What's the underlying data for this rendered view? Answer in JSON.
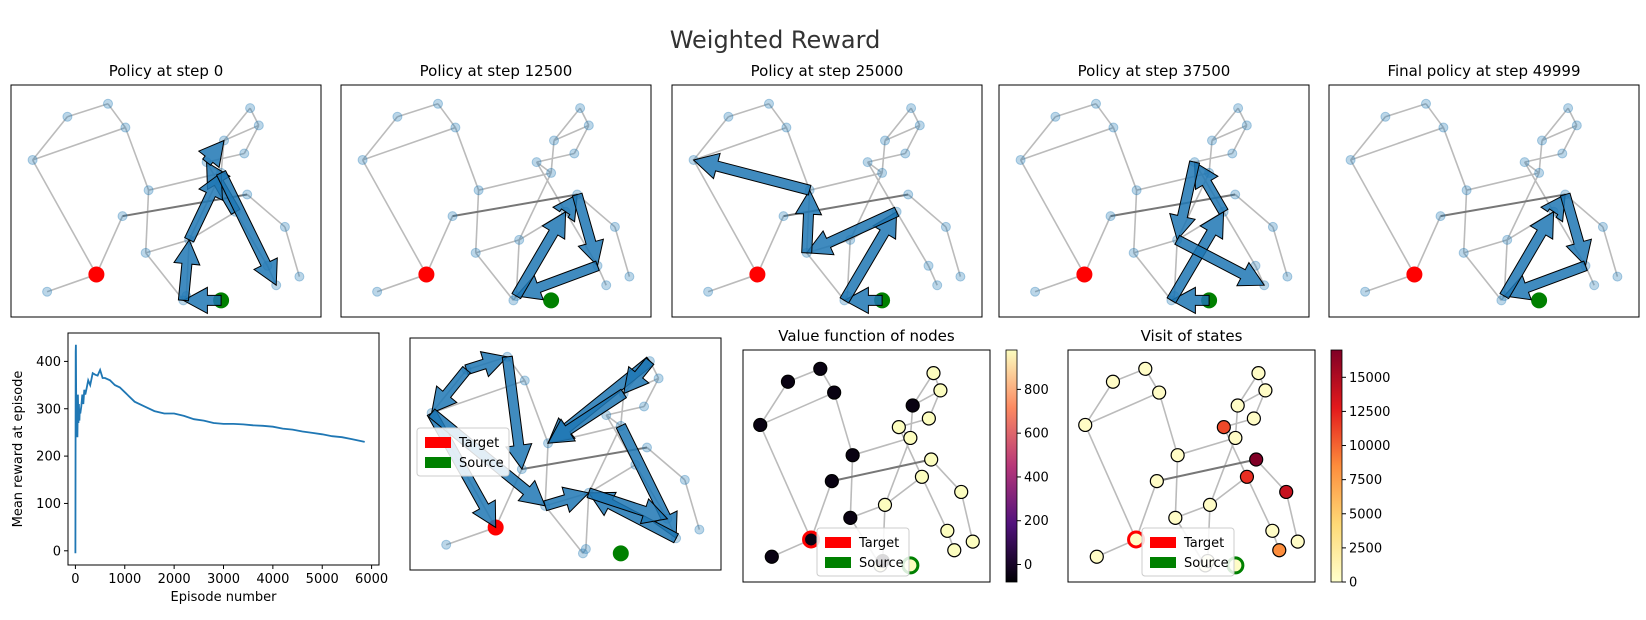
{
  "figure_title": "Weighted Reward",
  "colors": {
    "target": "#ff0000",
    "source": "#008000",
    "arrow": "#1f77b4",
    "edge": "#bbbbbb",
    "node": "#1f77b4",
    "reward_line": "#1f77b4"
  },
  "legend": {
    "target_label": "Target",
    "source_label": "Source"
  },
  "chart_data": [
    {
      "type": "network-policy",
      "title": "Policy at step 0",
      "arrows": [
        [
          16,
          17
        ],
        [
          15,
          14
        ],
        [
          14,
          13
        ],
        [
          17,
          9
        ],
        [
          9,
          11
        ],
        [
          11,
          10
        ]
      ]
    },
    {
      "type": "network-policy",
      "title": "Policy at step 12500",
      "arrows": [
        [
          15,
          19
        ],
        [
          19,
          20
        ],
        [
          20,
          21
        ],
        [
          21,
          15
        ]
      ]
    },
    {
      "type": "network-policy",
      "title": "Policy at step 25000",
      "arrows": [
        [
          16,
          17
        ],
        [
          17,
          15
        ],
        [
          15,
          8
        ],
        [
          8,
          6
        ],
        [
          6,
          3
        ]
      ]
    },
    {
      "type": "network-policy",
      "title": "Policy at step 37500",
      "arrows": [
        [
          16,
          17
        ],
        [
          17,
          15
        ],
        [
          15,
          14
        ],
        [
          14,
          9
        ],
        [
          9,
          10
        ]
      ]
    },
    {
      "type": "network-policy",
      "title": "Final policy at step 49999",
      "arrows": [
        [
          15,
          19
        ],
        [
          19,
          20
        ],
        [
          20,
          21
        ],
        [
          21,
          15
        ]
      ]
    },
    {
      "type": "line",
      "title": "",
      "xlabel": "Episode number",
      "ylabel": "Mean reward at episode",
      "xlim": [
        -150,
        6150
      ],
      "ylim": [
        -30,
        460
      ],
      "xticks": [
        0,
        1000,
        2000,
        3000,
        4000,
        5000,
        6000
      ],
      "yticks": [
        0,
        100,
        200,
        300,
        400
      ],
      "x": [
        0,
        5,
        10,
        15,
        20,
        30,
        40,
        50,
        60,
        70,
        80,
        90,
        100,
        120,
        140,
        160,
        180,
        200,
        230,
        260,
        300,
        350,
        400,
        450,
        500,
        550,
        600,
        700,
        800,
        900,
        1000,
        1200,
        1400,
        1600,
        1800,
        2000,
        2200,
        2400,
        2600,
        2800,
        3000,
        3200,
        3400,
        3600,
        3800,
        4000,
        4200,
        4400,
        4600,
        4800,
        5000,
        5200,
        5400,
        5600,
        5860
      ],
      "y": [
        -5,
        420,
        435,
        350,
        260,
        300,
        240,
        330,
        270,
        310,
        275,
        300,
        290,
        305,
        330,
        310,
        340,
        330,
        345,
        360,
        350,
        375,
        372,
        370,
        382,
        365,
        365,
        360,
        350,
        345,
        335,
        315,
        305,
        295,
        290,
        290,
        285,
        278,
        275,
        270,
        268,
        268,
        267,
        265,
        264,
        262,
        258,
        256,
        252,
        249,
        246,
        242,
        240,
        236,
        230
      ]
    },
    {
      "type": "network-policy",
      "title": "",
      "arrows": [
        [
          1,
          2
        ],
        [
          1,
          3
        ],
        [
          3,
          4
        ],
        [
          12,
          6
        ],
        [
          3,
          8
        ],
        [
          8,
          9
        ],
        [
          12,
          13
        ],
        [
          13,
          6
        ],
        [
          11,
          10
        ],
        [
          10,
          9
        ],
        [
          9,
          20
        ],
        [
          2,
          7
        ]
      ]
    },
    {
      "type": "network-heatmap",
      "title": "Value function of nodes",
      "colorbar": {
        "colormap": "magma",
        "min": -80,
        "max": 980,
        "ticks": [
          0,
          200,
          400,
          600,
          800
        ]
      },
      "node_values": [
        -50,
        -50,
        -50,
        -50,
        -50,
        -50,
        -50,
        -50,
        -50,
        980,
        980,
        980,
        980,
        -50,
        980,
        980,
        980,
        980,
        980,
        980,
        980,
        -50,
        980,
        980,
        980
      ]
    },
    {
      "type": "network-heatmap",
      "title": "Visit of states",
      "colorbar": {
        "colormap": "YlOrRd",
        "min": 0,
        "max": 17000,
        "ticks": [
          0,
          2500,
          5000,
          7500,
          10000,
          12500,
          15000
        ]
      },
      "node_values": [
        300,
        300,
        300,
        300,
        300,
        300,
        300,
        300,
        300,
        300,
        8500,
        300,
        300,
        300,
        11000,
        12000,
        300,
        300,
        300,
        17000,
        300,
        300,
        300,
        300,
        14000
      ]
    }
  ]
}
